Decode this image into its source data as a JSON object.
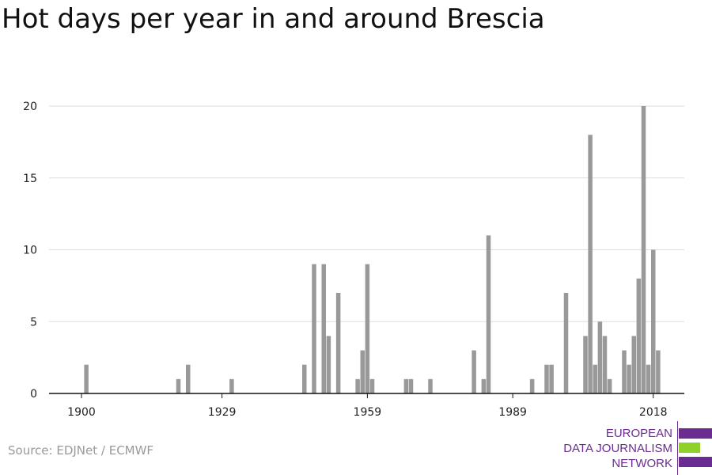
{
  "title": "Hot days per year in and around Brescia",
  "source": "Source: EDJNet / ECMWF",
  "logo": {
    "lines": [
      "EUROPEAN",
      "DATA JOURNALISM",
      "NETWORK"
    ],
    "colors": {
      "purple": "#6b2c91",
      "green": "#8fd12a"
    }
  },
  "chart_data": {
    "type": "bar",
    "title": "Hot days per year in and around Brescia",
    "xlabel": "",
    "ylabel": "",
    "x_range": [
      1900,
      2018
    ],
    "ylim": [
      0,
      20
    ],
    "yticks": [
      0,
      5,
      10,
      15,
      20
    ],
    "xticks": [
      1900,
      1929,
      1959,
      1989,
      2018
    ],
    "grid": true,
    "bar_color": "#999999",
    "x": [
      1901,
      1920,
      1922,
      1931,
      1946,
      1948,
      1950,
      1951,
      1953,
      1957,
      1958,
      1959,
      1960,
      1967,
      1968,
      1972,
      1981,
      1983,
      1984,
      1993,
      1996,
      1997,
      2000,
      2004,
      2005,
      2006,
      2007,
      2008,
      2009,
      2012,
      2013,
      2014,
      2015,
      2016,
      2017,
      2018
    ],
    "values": [
      2,
      1,
      2,
      1,
      2,
      9,
      9,
      4,
      7,
      1,
      3,
      9,
      1,
      1,
      1,
      1,
      3,
      1,
      11,
      1,
      2,
      2,
      7,
      4,
      18,
      2,
      5,
      4,
      1,
      3,
      2,
      4,
      8,
      20,
      2,
      10
    ],
    "extra_points": {
      "x": [
        2019
      ],
      "values": [
        3
      ]
    }
  }
}
